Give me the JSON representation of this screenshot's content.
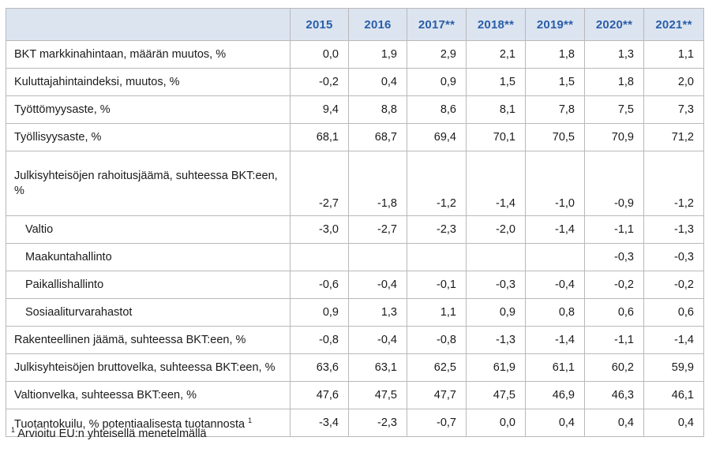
{
  "table": {
    "headers": [
      "",
      "2015",
      "2016",
      "2017**",
      "2018**",
      "2019**",
      "2020**",
      "2021**"
    ],
    "rows": [
      {
        "label": "BKT markkinahintaan, määrän muutos, %",
        "values": [
          "0,0",
          "1,9",
          "2,9",
          "2,1",
          "1,8",
          "1,3",
          "1,1"
        ]
      },
      {
        "label": "Kuluttajahintaindeksi, muutos, %",
        "values": [
          "-0,2",
          "0,4",
          "0,9",
          "1,5",
          "1,5",
          "1,8",
          "2,0"
        ]
      },
      {
        "label": "Työttömyysaste, %",
        "values": [
          "9,4",
          "8,8",
          "8,6",
          "8,1",
          "7,8",
          "7,5",
          "7,3"
        ]
      },
      {
        "label": "Työllisyysaste, %",
        "values": [
          "68,1",
          "68,7",
          "69,4",
          "70,1",
          "70,5",
          "70,9",
          "71,2"
        ]
      },
      {
        "label": "Julkisyhteisöjen rahoitusjäämä, suhteessa BKT:een, %",
        "values": [
          "-2,7",
          "-1,8",
          "-1,2",
          "-1,4",
          "-1,0",
          "-0,9",
          "-1,2"
        ]
      },
      {
        "label": "Valtio",
        "values": [
          "-3,0",
          "-2,7",
          "-2,3",
          "-2,0",
          "-1,4",
          "-1,1",
          "-1,3"
        ]
      },
      {
        "label": "Maakuntahallinto",
        "values": [
          "",
          "",
          "",
          "",
          "",
          "-0,3",
          "-0,3"
        ]
      },
      {
        "label": "Paikallishallinto",
        "values": [
          "-0,6",
          "-0,4",
          "-0,1",
          "-0,3",
          "-0,4",
          "-0,2",
          "-0,2"
        ]
      },
      {
        "label": "Sosiaaliturvarahastot",
        "values": [
          "0,9",
          "1,3",
          "1,1",
          "0,9",
          "0,8",
          "0,6",
          "0,6"
        ]
      },
      {
        "label": "Rakenteellinen jäämä, suhteessa BKT:een, %",
        "values": [
          "-0,8",
          "-0,4",
          "-0,8",
          "-1,3",
          "-1,4",
          "-1,1",
          "-1,4"
        ]
      },
      {
        "label": "Julkisyhteisöjen bruttovelka, suhteessa BKT:een, %",
        "values": [
          "63,6",
          "63,1",
          "62,5",
          "61,9",
          "61,1",
          "60,2",
          "59,9"
        ]
      },
      {
        "label": "Valtionvelka, suhteessa BKT:een, %",
        "values": [
          "47,6",
          "47,5",
          "47,7",
          "47,5",
          "46,9",
          "46,3",
          "46,1"
        ]
      },
      {
        "label": "Tuotantokuilu, % potentiaalisesta tuotannosta",
        "sup": "1",
        "values": [
          "-3,4",
          "-2,3",
          "-0,7",
          "0,0",
          "0,4",
          "0,4",
          "0,4"
        ]
      }
    ]
  },
  "footnote": {
    "marker": "1",
    "text": " Arvioitu EU:n yhteisellä menetelmällä"
  }
}
